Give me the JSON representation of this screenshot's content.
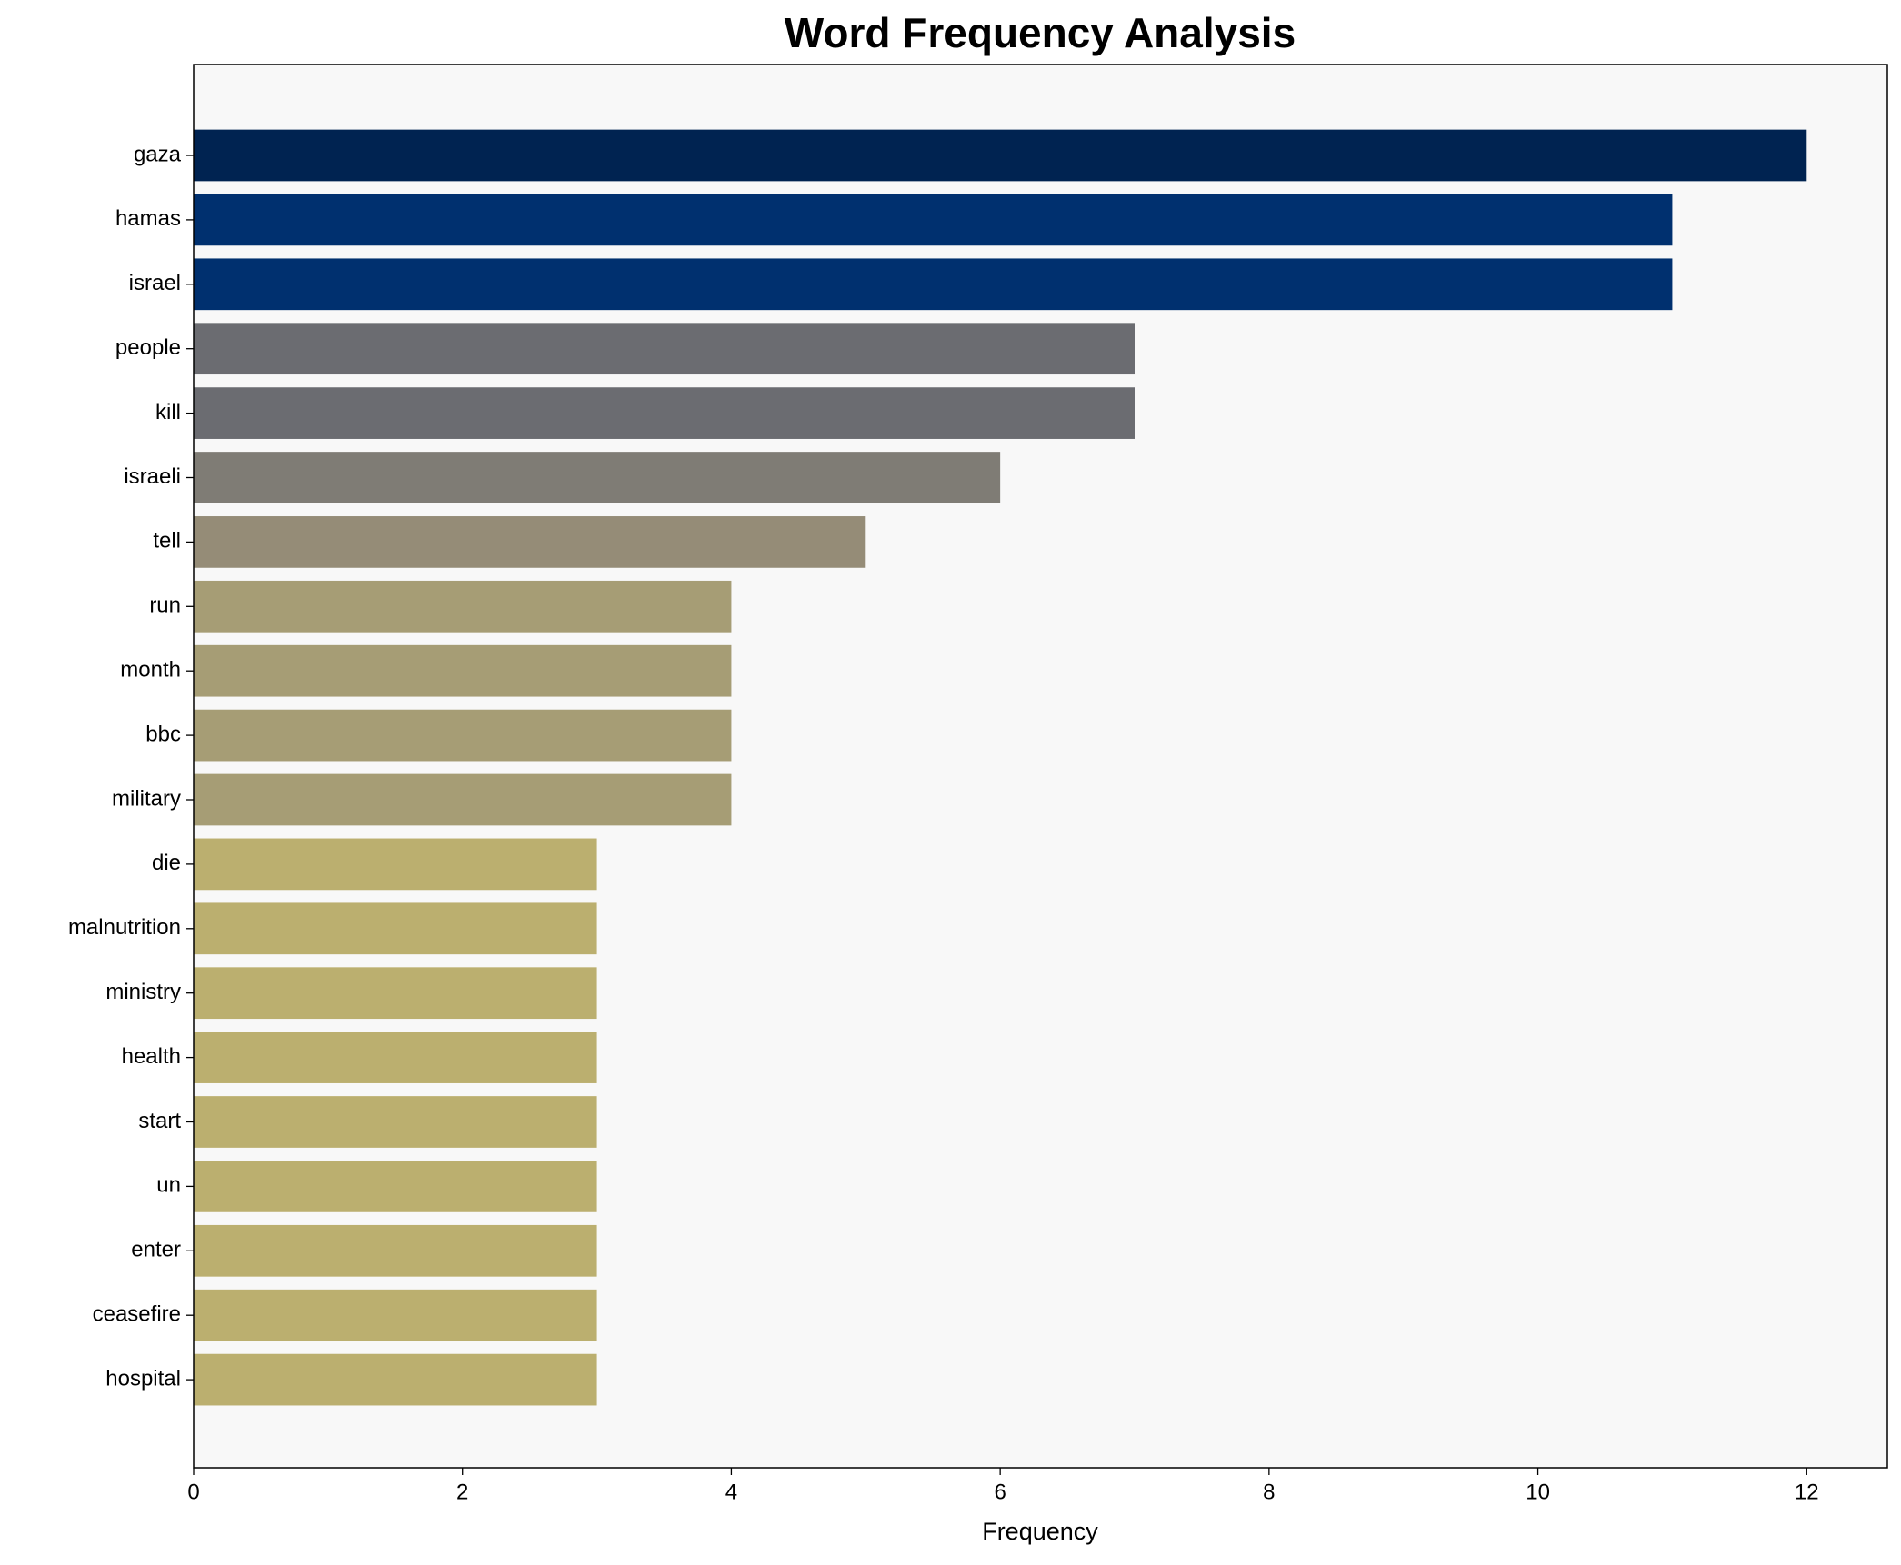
{
  "chart_data": {
    "type": "barh",
    "title": "Word Frequency Analysis",
    "x_label": "Frequency",
    "categories": [
      "gaza",
      "hamas",
      "israel",
      "people",
      "kill",
      "israeli",
      "tell",
      "run",
      "month",
      "bbc",
      "military",
      "die",
      "malnutrition",
      "ministry",
      "health",
      "start",
      "un",
      "enter",
      "ceasefire",
      "hospital"
    ],
    "values": [
      12,
      11,
      11,
      7,
      7,
      6,
      5,
      4,
      4,
      4,
      4,
      3,
      3,
      3,
      3,
      3,
      3,
      3,
      3,
      3
    ],
    "colors": [
      "#002351",
      "#00306f",
      "#00306f",
      "#6b6c71",
      "#6b6c71",
      "#7f7c75",
      "#958c77",
      "#a69d75",
      "#a69d75",
      "#a69d75",
      "#a69d75",
      "#bbaf6f",
      "#bbaf6f",
      "#bbaf6f",
      "#bbaf6f",
      "#bbaf6f",
      "#bbaf6f",
      "#bbaf6f",
      "#bbaf6f",
      "#bbaf6f"
    ],
    "xlim": [
      0,
      12.6
    ],
    "xticks": [
      0,
      2,
      4,
      6,
      8,
      10,
      12
    ],
    "grid": false
  }
}
